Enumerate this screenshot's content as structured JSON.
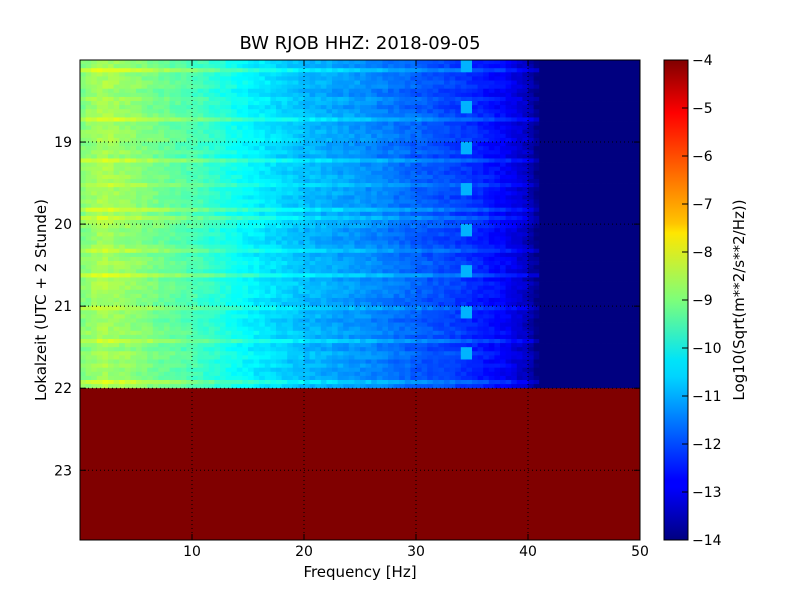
{
  "chart_data": {
    "type": "heatmap",
    "title": "BW RJOB HHZ: 2018-09-05",
    "xlabel": "Frequency [Hz]",
    "ylabel": "Lokalzeit (UTC + 2 Stunde)",
    "colorbar_label": "Log10(Sqrt(m**2/s**2/Hz))",
    "colormap": "jet",
    "xlim": [
      0,
      50
    ],
    "ylim_hours": [
      18.0,
      23.85
    ],
    "clim": [
      -14,
      -4
    ],
    "grid": true,
    "x_ticks": [
      {
        "value": 10,
        "label": "10"
      },
      {
        "value": 20,
        "label": "20"
      },
      {
        "value": 30,
        "label": "30"
      },
      {
        "value": 40,
        "label": "40"
      },
      {
        "value": 50,
        "label": "50"
      }
    ],
    "y_ticks": [
      {
        "value": 19,
        "label": "19"
      },
      {
        "value": 20,
        "label": "20"
      },
      {
        "value": 21,
        "label": "21"
      },
      {
        "value": 22,
        "label": "22"
      },
      {
        "value": 23,
        "label": "23"
      }
    ],
    "colorbar_ticks": [
      {
        "value": -4,
        "label": "−4"
      },
      {
        "value": -5,
        "label": "−5"
      },
      {
        "value": -6,
        "label": "−6"
      },
      {
        "value": -7,
        "label": "−7"
      },
      {
        "value": -8,
        "label": "−8"
      },
      {
        "value": -9,
        "label": "−9"
      },
      {
        "value": -10,
        "label": "−10"
      },
      {
        "value": -11,
        "label": "−11"
      },
      {
        "value": -12,
        "label": "−12"
      },
      {
        "value": -13,
        "label": "−13"
      },
      {
        "value": -14,
        "label": "−14"
      }
    ],
    "data_end_hour": 22.0,
    "no_data_fill_value": -4,
    "spectrum_profile": [
      {
        "f": 0,
        "v": -9.0
      },
      {
        "f": 2,
        "v": -8.6
      },
      {
        "f": 5,
        "v": -8.9
      },
      {
        "f": 10,
        "v": -9.5
      },
      {
        "f": 15,
        "v": -10.3
      },
      {
        "f": 20,
        "v": -10.9
      },
      {
        "f": 25,
        "v": -11.3
      },
      {
        "f": 30,
        "v": -11.8
      },
      {
        "f": 34,
        "v": -12.2
      },
      {
        "f": 38,
        "v": -12.8
      },
      {
        "f": 40,
        "v": -13.4
      },
      {
        "f": 41,
        "v": -14.0
      },
      {
        "f": 50,
        "v": -14.0
      }
    ],
    "tonal_line": {
      "frequency_hz": 34.5,
      "value": -11.0
    },
    "bright_bands_hours": [
      18.1,
      18.7,
      19.2,
      19.5,
      19.8,
      19.9,
      20.3,
      20.6,
      21.0,
      21.4,
      21.9
    ]
  }
}
